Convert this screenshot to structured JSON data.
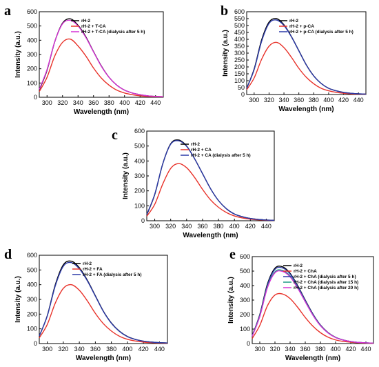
{
  "chart_data": [
    {
      "panel": "a",
      "type": "line",
      "xlabel": "Wavelength (nm)",
      "ylabel": "Intensity (a.u.)",
      "xlim": [
        290,
        450
      ],
      "ylim": [
        0,
        600
      ],
      "xticks": [
        300,
        320,
        340,
        360,
        380,
        400,
        420,
        440
      ],
      "yticks": [
        0,
        100,
        200,
        300,
        400,
        500,
        600
      ],
      "legend_position": "top-right",
      "series": [
        {
          "name": "rH-2",
          "color": "#000000",
          "peak_x": 328,
          "peak_y": 550,
          "x": [
            290,
            300,
            310,
            320,
            330,
            340,
            350,
            360,
            370,
            380,
            390,
            400,
            410,
            420,
            430,
            440,
            450
          ],
          "y": [
            50,
            190,
            390,
            520,
            550,
            505,
            425,
            320,
            220,
            140,
            85,
            50,
            30,
            18,
            10,
            6,
            4
          ]
        },
        {
          "name": "rH-2 + T-CA",
          "color": "#e8322a",
          "peak_x": 326,
          "peak_y": 408,
          "x": [
            290,
            300,
            310,
            320,
            330,
            340,
            350,
            360,
            370,
            380,
            390,
            400,
            410,
            420,
            430,
            440,
            450
          ],
          "y": [
            40,
            140,
            290,
            385,
            408,
            360,
            290,
            205,
            135,
            85,
            50,
            30,
            18,
            10,
            6,
            4,
            3
          ]
        },
        {
          "name": "rH-2 + T-CA (dialysis after 5 h)",
          "color": "#d633d6",
          "peak_x": 326,
          "peak_y": 540,
          "x": [
            290,
            300,
            310,
            320,
            330,
            340,
            350,
            360,
            370,
            380,
            390,
            400,
            410,
            420,
            430,
            440,
            450
          ],
          "y": [
            55,
            195,
            390,
            515,
            540,
            500,
            420,
            318,
            218,
            140,
            85,
            50,
            30,
            18,
            10,
            6,
            4
          ]
        }
      ]
    },
    {
      "panel": "b",
      "type": "line",
      "xlabel": "Wavelength (nm)",
      "ylabel": "Intensity (a.u.)",
      "xlim": [
        290,
        450
      ],
      "ylim": [
        0,
        600
      ],
      "xticks": [
        300,
        320,
        340,
        360,
        380,
        400,
        420,
        440
      ],
      "yticks": [
        0,
        50,
        100,
        150,
        200,
        250,
        300,
        350,
        400,
        450,
        500,
        550,
        600
      ],
      "legend_position": "top-right",
      "series": [
        {
          "name": "rH-2",
          "color": "#000000",
          "peak_x": 326,
          "peak_y": 555,
          "x": [
            290,
            300,
            310,
            320,
            330,
            340,
            350,
            360,
            370,
            380,
            390,
            400,
            410,
            420,
            430,
            440,
            450
          ],
          "y": [
            45,
            185,
            395,
            525,
            550,
            505,
            420,
            318,
            215,
            135,
            80,
            45,
            27,
            15,
            9,
            5,
            3
          ]
        },
        {
          "name": "rH-2 + p-CA",
          "color": "#e8322a",
          "peak_x": 328,
          "peak_y": 378,
          "x": [
            290,
            300,
            310,
            320,
            330,
            340,
            350,
            360,
            370,
            380,
            390,
            400,
            410,
            420,
            430,
            440,
            450
          ],
          "y": [
            35,
            120,
            255,
            350,
            378,
            340,
            270,
            190,
            125,
            78,
            45,
            27,
            16,
            9,
            5,
            3,
            2
          ]
        },
        {
          "name": "rH-2 + p-CA (dialysis after 5 h)",
          "color": "#2c3aa8",
          "peak_x": 326,
          "peak_y": 540,
          "x": [
            290,
            300,
            310,
            320,
            330,
            340,
            350,
            360,
            370,
            380,
            390,
            400,
            410,
            420,
            430,
            440,
            450
          ],
          "y": [
            45,
            180,
            385,
            515,
            540,
            500,
            418,
            316,
            214,
            134,
            80,
            45,
            27,
            15,
            9,
            5,
            3
          ]
        }
      ]
    },
    {
      "panel": "c",
      "type": "line",
      "xlabel": "Wavelength (nm)",
      "ylabel": "Intensity (a.u.)",
      "xlim": [
        290,
        450
      ],
      "ylim": [
        0,
        600
      ],
      "xticks": [
        300,
        320,
        340,
        360,
        380,
        400,
        420,
        440
      ],
      "yticks": [
        0,
        100,
        200,
        300,
        400,
        500,
        600
      ],
      "legend_position": "top-right",
      "series": [
        {
          "name": "rH-2",
          "color": "#000000",
          "peak_x": 326,
          "peak_y": 545,
          "x": [
            290,
            300,
            310,
            320,
            330,
            340,
            350,
            360,
            370,
            380,
            390,
            400,
            410,
            420,
            430,
            440,
            450
          ],
          "y": [
            40,
            175,
            380,
            515,
            540,
            500,
            415,
            315,
            215,
            135,
            80,
            45,
            27,
            15,
            9,
            5,
            3
          ]
        },
        {
          "name": "rH-2 + CA",
          "color": "#e8322a",
          "peak_x": 332,
          "peak_y": 385,
          "x": [
            290,
            300,
            310,
            320,
            330,
            340,
            350,
            360,
            370,
            380,
            390,
            400,
            410,
            420,
            430,
            440,
            450
          ],
          "y": [
            30,
            110,
            245,
            350,
            383,
            355,
            290,
            210,
            140,
            90,
            55,
            32,
            19,
            11,
            6,
            4,
            2
          ]
        },
        {
          "name": "rH-2 + CA (dialysis after 5 h)",
          "color": "#2c3aa8",
          "peak_x": 328,
          "peak_y": 535,
          "x": [
            290,
            300,
            310,
            320,
            330,
            340,
            350,
            360,
            370,
            380,
            390,
            400,
            410,
            420,
            430,
            440,
            450
          ],
          "y": [
            42,
            178,
            380,
            512,
            535,
            498,
            415,
            315,
            215,
            135,
            80,
            45,
            27,
            15,
            9,
            5,
            3
          ]
        }
      ]
    },
    {
      "panel": "d",
      "type": "line",
      "xlabel": "Wavelength (nm)",
      "ylabel": "Intensity (a.u.)",
      "xlim": [
        290,
        450
      ],
      "ylim": [
        0,
        600
      ],
      "xticks": [
        300,
        320,
        340,
        360,
        380,
        400,
        420,
        440
      ],
      "yticks": [
        0,
        100,
        200,
        300,
        400,
        500,
        600
      ],
      "legend_position": "top-right",
      "series": [
        {
          "name": "rH-2",
          "color": "#000000",
          "peak_x": 326,
          "peak_y": 565,
          "x": [
            290,
            300,
            310,
            320,
            330,
            340,
            350,
            360,
            370,
            380,
            390,
            400,
            410,
            420,
            430,
            440,
            450
          ],
          "y": [
            50,
            190,
            400,
            535,
            560,
            515,
            430,
            325,
            220,
            140,
            84,
            48,
            28,
            16,
            10,
            6,
            4
          ]
        },
        {
          "name": "rH-2 + FA",
          "color": "#e8322a",
          "peak_x": 328,
          "peak_y": 400,
          "x": [
            290,
            300,
            310,
            320,
            330,
            340,
            350,
            360,
            370,
            380,
            390,
            400,
            410,
            420,
            430,
            440,
            450
          ],
          "y": [
            38,
            130,
            275,
            375,
            400,
            362,
            290,
            205,
            135,
            85,
            50,
            29,
            17,
            10,
            6,
            4,
            2
          ]
        },
        {
          "name": "rH-2 + FA (dialysis after 5 h)",
          "color": "#2c3aa8",
          "peak_x": 328,
          "peak_y": 550,
          "x": [
            290,
            300,
            310,
            320,
            330,
            340,
            350,
            360,
            370,
            380,
            390,
            400,
            410,
            420,
            430,
            440,
            450
          ],
          "y": [
            52,
            188,
            392,
            525,
            550,
            508,
            426,
            322,
            218,
            138,
            83,
            47,
            28,
            16,
            10,
            6,
            4
          ]
        }
      ]
    },
    {
      "panel": "e",
      "type": "line",
      "xlabel": "Wavelength (nm)",
      "ylabel": "Intensity (a.u.)",
      "xlim": [
        290,
        450
      ],
      "ylim": [
        0,
        600
      ],
      "xticks": [
        300,
        320,
        340,
        360,
        380,
        400,
        420,
        440
      ],
      "yticks": [
        0,
        100,
        200,
        300,
        400,
        500,
        600
      ],
      "legend_position": "top-right",
      "series": [
        {
          "name": "rH-2",
          "color": "#000000",
          "peak_x": 324,
          "peak_y": 535,
          "x": [
            290,
            300,
            310,
            320,
            330,
            340,
            350,
            360,
            370,
            380,
            390,
            400,
            410,
            420,
            430,
            440,
            450
          ],
          "y": [
            55,
            200,
            410,
            520,
            530,
            485,
            400,
            300,
            205,
            128,
            76,
            43,
            25,
            14,
            8,
            5,
            3
          ]
        },
        {
          "name": "rH-2 + ChA",
          "color": "#e8322a",
          "peak_x": 324,
          "peak_y": 345,
          "x": [
            290,
            300,
            310,
            320,
            330,
            340,
            350,
            360,
            370,
            380,
            390,
            400,
            410,
            420,
            430,
            440,
            450
          ],
          "y": [
            35,
            125,
            260,
            335,
            342,
            310,
            250,
            180,
            120,
            75,
            44,
            25,
            15,
            9,
            5,
            3,
            2
          ]
        },
        {
          "name": "rH-2 + ChA (dialysis after 5 h)",
          "color": "#2c3aa8",
          "peak_x": 324,
          "peak_y": 525,
          "x": [
            290,
            300,
            310,
            320,
            330,
            340,
            350,
            360,
            370,
            380,
            390,
            400,
            410,
            420,
            430,
            440,
            450
          ],
          "y": [
            54,
            196,
            402,
            512,
            522,
            480,
            396,
            297,
            203,
            127,
            75,
            42,
            25,
            14,
            8,
            5,
            3
          ]
        },
        {
          "name": "rH-2 + ChA (dialysis after 15 h)",
          "color": "#1e9a86",
          "peak_x": 324,
          "peak_y": 505,
          "x": [
            290,
            300,
            310,
            320,
            330,
            340,
            350,
            360,
            370,
            380,
            390,
            400,
            410,
            420,
            430,
            440,
            450
          ],
          "y": [
            52,
            190,
            390,
            495,
            505,
            466,
            386,
            290,
            198,
            124,
            74,
            42,
            24,
            14,
            8,
            5,
            3
          ]
        },
        {
          "name": "rH-2 + ChA (dialysis after 20 h)",
          "color": "#d633d6",
          "peak_x": 324,
          "peak_y": 498,
          "x": [
            290,
            300,
            310,
            320,
            330,
            340,
            350,
            360,
            370,
            380,
            390,
            400,
            410,
            420,
            430,
            440,
            450
          ],
          "y": [
            50,
            186,
            384,
            488,
            498,
            460,
            382,
            288,
            196,
            123,
            73,
            41,
            24,
            14,
            8,
            5,
            3
          ]
        }
      ]
    }
  ]
}
